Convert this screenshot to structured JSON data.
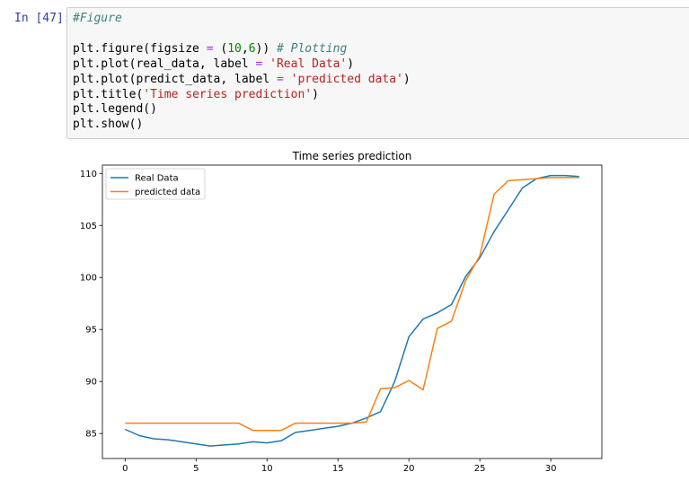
{
  "prompt": "In [47]:",
  "code": {
    "line1_comment": "#Figure",
    "line2_a": "plt.figure(figsize ",
    "line2_eq": "=",
    "line2_b": " (",
    "line2_n1": "10",
    "line2_c": ",",
    "line2_n2": "6",
    "line2_d": ")) ",
    "line2_comment": "# Plotting",
    "line3_a": "plt.plot(real_data, label ",
    "line3_eq": "=",
    "line3_sp": " ",
    "line3_str": "'Real Data'",
    "line3_end": ")",
    "line4_a": "plt.plot(predict_data, label ",
    "line4_eq": "=",
    "line4_sp": " ",
    "line4_str": "'predicted data'",
    "line4_end": ")",
    "line5_a": "plt.title(",
    "line5_str": "'Time series prediction'",
    "line5_end": ")",
    "line6": "plt.legend()",
    "line7": "plt.show()"
  },
  "chart_data": {
    "type": "line",
    "title": "Time series prediction",
    "xlabel": "",
    "ylabel": "",
    "xlim": [
      -1.6,
      33.6
    ],
    "ylim": [
      82.6,
      110.8
    ],
    "xticks": [
      0,
      5,
      10,
      15,
      20,
      25,
      30
    ],
    "yticks": [
      85,
      90,
      95,
      100,
      105,
      110
    ],
    "legend_position": "upper-left",
    "grid": false,
    "series": [
      {
        "name": "Real Data",
        "color": "#1f77b4",
        "x": [
          0,
          1,
          2,
          3,
          4,
          5,
          6,
          7,
          8,
          9,
          10,
          11,
          12,
          13,
          14,
          15,
          16,
          17,
          18,
          19,
          20,
          21,
          22,
          23,
          24,
          25,
          26,
          27,
          28,
          29,
          30,
          31,
          32
        ],
        "values": [
          85.4,
          84.8,
          84.5,
          84.4,
          84.2,
          84.0,
          83.8,
          83.9,
          84.0,
          84.2,
          84.1,
          84.3,
          85.1,
          85.3,
          85.5,
          85.7,
          86.0,
          86.5,
          87.1,
          90.0,
          94.3,
          96.0,
          96.6,
          97.4,
          100.1,
          101.9,
          104.4,
          106.5,
          108.6,
          109.5,
          109.8,
          109.8,
          109.7
        ]
      },
      {
        "name": "predicted data",
        "color": "#ff7f0e",
        "x": [
          0,
          1,
          2,
          3,
          4,
          5,
          6,
          7,
          8,
          9,
          10,
          11,
          12,
          13,
          14,
          15,
          16,
          17,
          18,
          19,
          20,
          21,
          22,
          23,
          24,
          25,
          26,
          27,
          28,
          29,
          30,
          31,
          32
        ],
        "values": [
          86.0,
          86.0,
          86.0,
          86.0,
          86.0,
          86.0,
          86.0,
          86.0,
          86.0,
          85.3,
          85.3,
          85.3,
          86.0,
          86.0,
          86.0,
          86.0,
          86.0,
          86.1,
          89.3,
          89.4,
          90.1,
          89.2,
          95.1,
          95.8,
          99.7,
          102.1,
          108.0,
          109.3,
          109.4,
          109.5,
          109.6,
          109.6,
          109.6
        ]
      }
    ]
  }
}
